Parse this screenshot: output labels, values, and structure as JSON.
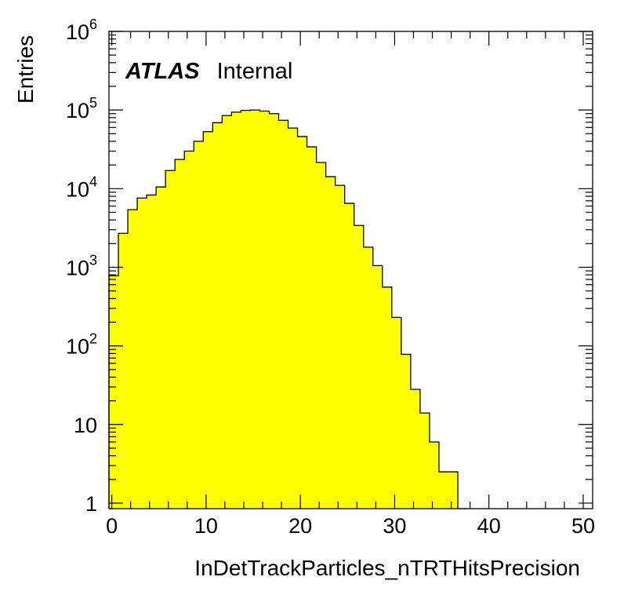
{
  "chart_data": {
    "type": "bar",
    "histogram": true,
    "xlabel": "InDetTrackParticles_nTRTHitsPrecision",
    "ylabel": "Entries",
    "xlim": [
      -0.3,
      51
    ],
    "ylim": [
      0.85,
      1000000
    ],
    "yscale": "log",
    "fill_color": "#ffff00",
    "grid": false,
    "x_tick_labels": [
      "0",
      "10",
      "20",
      "30",
      "40",
      "50"
    ],
    "y_tick_labels": [
      {
        "value": 1,
        "base": "1",
        "exp": ""
      },
      {
        "value": 10,
        "base": "10",
        "exp": ""
      },
      {
        "value": 100,
        "base": "10",
        "exp": "2"
      },
      {
        "value": 1000,
        "base": "10",
        "exp": "3"
      },
      {
        "value": 10000,
        "base": "10",
        "exp": "4"
      },
      {
        "value": 100000,
        "base": "10",
        "exp": "5"
      },
      {
        "value": 1000000,
        "base": "10",
        "exp": "6"
      }
    ],
    "bin_width": 1,
    "bin_lows": [
      -0.3,
      0.7,
      1.7,
      2.7,
      3.7,
      4.7,
      5.7,
      6.7,
      7.7,
      8.7,
      9.7,
      10.7,
      11.7,
      12.7,
      13.7,
      14.7,
      15.7,
      16.7,
      17.7,
      18.7,
      19.7,
      20.7,
      21.7,
      22.7,
      23.7,
      24.7,
      25.7,
      26.7,
      27.7,
      28.7,
      29.7,
      30.7,
      31.7,
      32.7,
      33.7,
      34.7,
      35.7,
      36.7
    ],
    "values": [
      780,
      2700,
      5400,
      7600,
      8300,
      10500,
      17000,
      23500,
      30000,
      40000,
      53000,
      69000,
      85000,
      94000,
      99000,
      100000,
      97000,
      90000,
      74000,
      59000,
      46000,
      34000,
      21500,
      14200,
      11000,
      6500,
      3400,
      1800,
      1050,
      560,
      230,
      78,
      28,
      14,
      6,
      2.5,
      2.5,
      0
    ],
    "annotation": {
      "bold": "ATLAS",
      "normal": "Internal"
    }
  }
}
